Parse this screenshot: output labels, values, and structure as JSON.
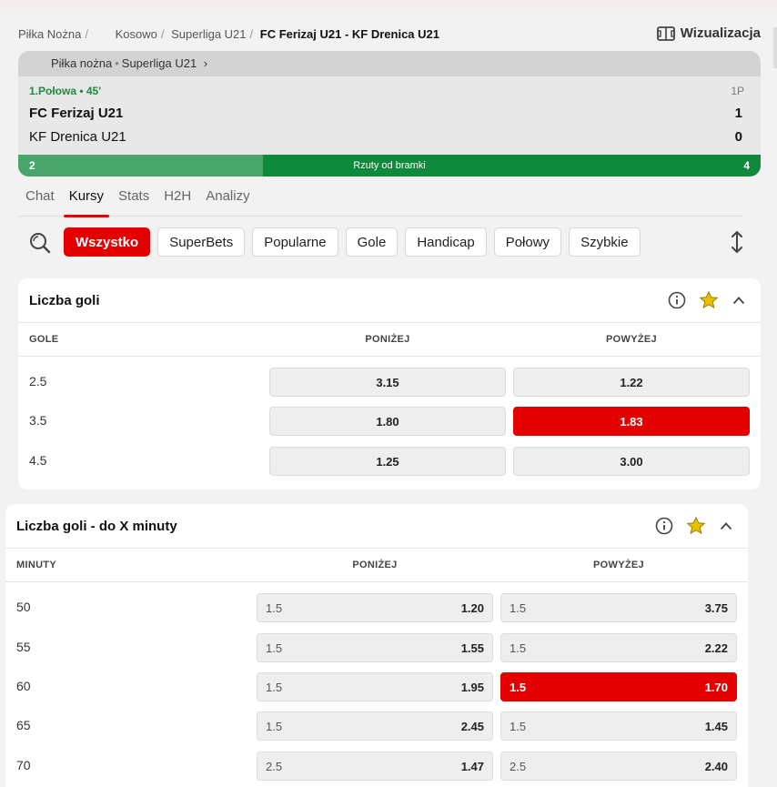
{
  "breadcrumb": {
    "sport": "Piłka Nożna",
    "country": "Kosowo",
    "league": "Superliga U21",
    "match": "FC Ferizaj U21 - KF Drenica U21"
  },
  "visualization_label": "Wizualizacja",
  "match": {
    "header_sport": "Piłka nożna",
    "header_league": "Superliga U21",
    "period": "1.Połowa • 45'",
    "period_short": "1P",
    "home_team": "FC Ferizaj U21",
    "away_team": "KF Drenica U21",
    "home_score": "1",
    "away_score": "0",
    "stat": {
      "label": "Rzuty od bramki",
      "home": "2",
      "away": "4",
      "home_fraction": 0.33
    }
  },
  "tabs": [
    "Chat",
    "Kursy",
    "Stats",
    "H2H",
    "Analizy"
  ],
  "active_tab": "Kursy",
  "filters": [
    "Wszystko",
    "SuperBets",
    "Popularne",
    "Gole",
    "Handicap",
    "Połowy",
    "Szybkie"
  ],
  "active_filter": "Wszystko",
  "markets": [
    {
      "title": "Liczba goli",
      "col1": "GOLE",
      "col2": "PONIŻEJ",
      "col3": "POWYŻEJ",
      "rows": [
        {
          "label": "2.5",
          "under": "3.15",
          "over": "1.22"
        },
        {
          "label": "3.5",
          "under": "1.80",
          "over": "1.83",
          "selected": "over"
        },
        {
          "label": "4.5",
          "under": "1.25",
          "over": "3.00"
        }
      ]
    },
    {
      "title": "Liczba goli - do X minuty",
      "col1": "MINUTY",
      "col2": "PONIŻEJ",
      "col3": "POWYŻEJ",
      "rows": [
        {
          "label": "50",
          "under_line": "1.5",
          "under": "1.20",
          "over_line": "1.5",
          "over": "3.75"
        },
        {
          "label": "55",
          "under_line": "1.5",
          "under": "1.55",
          "over_line": "1.5",
          "over": "2.22"
        },
        {
          "label": "60",
          "under_line": "1.5",
          "under": "1.95",
          "over_line": "1.5",
          "over": "1.70",
          "selected": "over"
        },
        {
          "label": "65",
          "under_line": "1.5",
          "under": "2.45",
          "over_line": "1.5",
          "over": "1.45"
        },
        {
          "label": "70",
          "under_line": "2.5",
          "under": "1.47",
          "over_line": "2.5",
          "over": "2.40"
        }
      ]
    }
  ],
  "colors": {
    "accent": "#e40000",
    "live_green": "#0f8a3c",
    "star": "#e8c200"
  }
}
